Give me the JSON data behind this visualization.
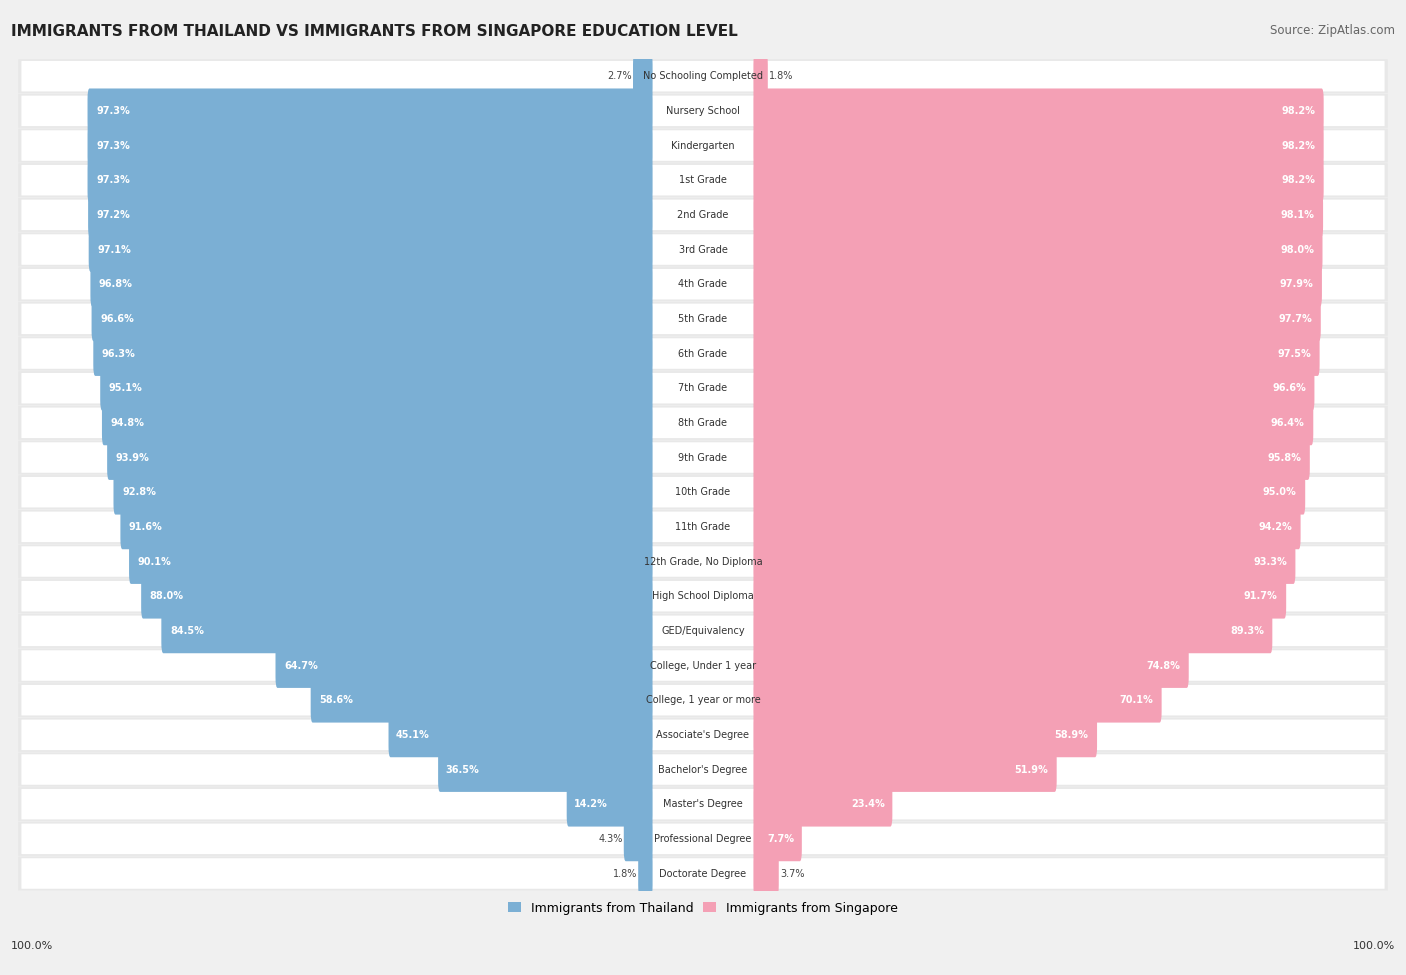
{
  "title": "IMMIGRANTS FROM THAILAND VS IMMIGRANTS FROM SINGAPORE EDUCATION LEVEL",
  "source": "Source: ZipAtlas.com",
  "categories": [
    "No Schooling Completed",
    "Nursery School",
    "Kindergarten",
    "1st Grade",
    "2nd Grade",
    "3rd Grade",
    "4th Grade",
    "5th Grade",
    "6th Grade",
    "7th Grade",
    "8th Grade",
    "9th Grade",
    "10th Grade",
    "11th Grade",
    "12th Grade, No Diploma",
    "High School Diploma",
    "GED/Equivalency",
    "College, Under 1 year",
    "College, 1 year or more",
    "Associate's Degree",
    "Bachelor's Degree",
    "Master's Degree",
    "Professional Degree",
    "Doctorate Degree"
  ],
  "thailand": [
    2.7,
    97.3,
    97.3,
    97.3,
    97.2,
    97.1,
    96.8,
    96.6,
    96.3,
    95.1,
    94.8,
    93.9,
    92.8,
    91.6,
    90.1,
    88.0,
    84.5,
    64.7,
    58.6,
    45.1,
    36.5,
    14.2,
    4.3,
    1.8
  ],
  "singapore": [
    1.8,
    98.2,
    98.2,
    98.2,
    98.1,
    98.0,
    97.9,
    97.7,
    97.5,
    96.6,
    96.4,
    95.8,
    95.0,
    94.2,
    93.3,
    91.7,
    89.3,
    74.8,
    70.1,
    58.9,
    51.9,
    23.4,
    7.7,
    3.7
  ],
  "thailand_color": "#7bafd4",
  "singapore_color": "#f4a0b5",
  "background_color": "#f0f0f0",
  "bar_bg_color": "#ffffff",
  "row_bg_color": "#e8e8e8",
  "legend_thailand": "Immigrants from Thailand",
  "legend_singapore": "Immigrants from Singapore"
}
